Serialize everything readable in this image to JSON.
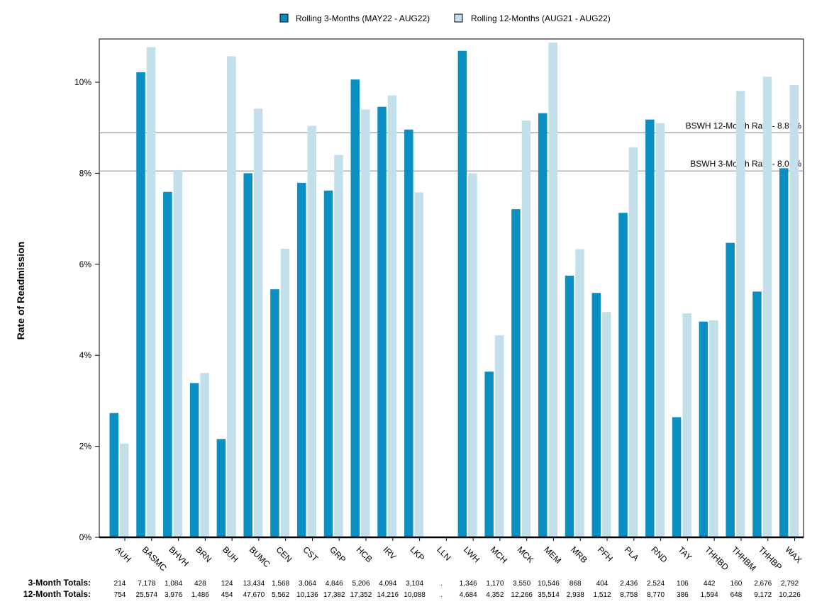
{
  "chart_data": {
    "type": "bar",
    "title": "",
    "xlabel": "",
    "ylabel": "Rate of Readmission",
    "ylim": [
      0,
      0.11
    ],
    "yticks": [
      0,
      0.02,
      0.04,
      0.06,
      0.08,
      0.1
    ],
    "ytick_labels": [
      "0%",
      "2%",
      "4%",
      "6%",
      "8%",
      "10%"
    ],
    "grid": false,
    "legend_position": "top",
    "colors": {
      "series_3m": "#0a8fc2",
      "series_12m": "#c2dfea",
      "reference_line": "#999999"
    },
    "categories": [
      "AUH",
      "BASMC",
      "BHVH",
      "BRN",
      "BUH",
      "BUMC",
      "CEN",
      "CST",
      "GRP",
      "HCB",
      "IRV",
      "LKP",
      "LLN",
      "LWH",
      "MCH",
      "MCK",
      "MEM",
      "MRB",
      "PFH",
      "PLA",
      "RND",
      "TAY",
      "THHBD",
      "THHBM",
      "THHBP",
      "WAX"
    ],
    "series": [
      {
        "name": "Rolling 3-Months (MAY22 - AUG22)",
        "values": [
          0.0273,
          0.1022,
          0.0759,
          0.0339,
          0.0216,
          0.08,
          0.0545,
          0.0779,
          0.0762,
          0.1006,
          0.0946,
          0.0896,
          null,
          0.1069,
          0.0364,
          0.0721,
          0.0932,
          0.0575,
          0.0537,
          0.0713,
          0.0918,
          0.0264,
          0.0474,
          0.0647,
          0.054,
          0.0811
        ]
      },
      {
        "name": "Rolling 12-Months (AUG21 - AUG22)",
        "values": [
          0.0206,
          0.1077,
          0.0807,
          0.0361,
          0.1057,
          0.0942,
          0.0634,
          0.0904,
          0.084,
          0.094,
          0.0971,
          0.0758,
          null,
          0.08,
          0.0444,
          0.0916,
          0.1087,
          0.0633,
          0.0495,
          0.0857,
          0.091,
          0.0492,
          0.0477,
          0.0981,
          0.1012,
          0.0994
        ]
      }
    ],
    "reference_lines": [
      {
        "label": "BSWH 12-Month Rate - 8.89%",
        "value": 0.0889
      },
      {
        "label": "BSWH  3-Month Rate - 8.05%",
        "value": 0.0805
      }
    ],
    "totals": {
      "three_month_label": "3-Month Totals:",
      "twelve_month_label": "12-Month Totals:",
      "three_month": [
        "214",
        "7,178",
        "1,084",
        "428",
        "124",
        "13,434",
        "1,568",
        "3,064",
        "4,846",
        "5,206",
        "4,094",
        "3,104",
        ".",
        "1,346",
        "1,170",
        "3,550",
        "10,546",
        "868",
        "404",
        "2,436",
        "2,524",
        "106",
        "442",
        "160",
        "2,676",
        "2,792"
      ],
      "twelve_month": [
        "754",
        "25,574",
        "3,976",
        "1,486",
        "454",
        "47,670",
        "5,562",
        "10,136",
        "17,382",
        "17,352",
        "14,216",
        "10,088",
        ".",
        "4,684",
        "4,352",
        "12,266",
        "35,514",
        "2,938",
        "1,512",
        "8,758",
        "8,770",
        "386",
        "1,594",
        "648",
        "9,172",
        "10,226"
      ]
    }
  }
}
